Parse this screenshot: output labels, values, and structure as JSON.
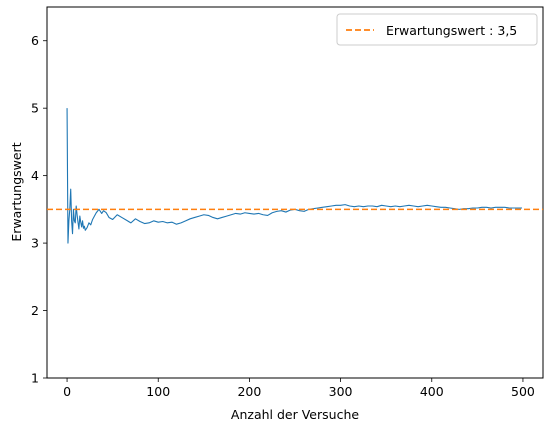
{
  "chart_data": {
    "type": "line",
    "title": "",
    "xlabel": "Anzahl der Versuche",
    "ylabel": "Erwartungswert",
    "xlim": [
      -22,
      522
    ],
    "ylim": [
      1,
      6.5
    ],
    "xticks": [
      0,
      100,
      200,
      300,
      400,
      500
    ],
    "yticks": [
      1,
      2,
      3,
      4,
      5,
      6
    ],
    "grid": false,
    "legend_position": "top-right",
    "series": [
      {
        "name": "",
        "color": "#1f77b4",
        "style": "solid",
        "x": [
          0,
          1,
          2,
          3,
          4,
          5,
          6,
          7,
          8,
          9,
          10,
          11,
          12,
          13,
          14,
          15,
          16,
          17,
          18,
          19,
          20,
          22,
          24,
          26,
          28,
          30,
          32,
          35,
          38,
          40,
          43,
          46,
          50,
          55,
          60,
          65,
          70,
          75,
          80,
          85,
          90,
          95,
          100,
          105,
          110,
          115,
          120,
          125,
          130,
          135,
          140,
          145,
          150,
          155,
          160,
          165,
          170,
          175,
          180,
          185,
          190,
          195,
          200,
          205,
          210,
          215,
          220,
          225,
          230,
          235,
          240,
          245,
          250,
          255,
          260,
          265,
          270,
          275,
          280,
          285,
          290,
          295,
          300,
          305,
          310,
          315,
          320,
          325,
          330,
          335,
          340,
          345,
          350,
          355,
          360,
          365,
          370,
          375,
          380,
          385,
          390,
          395,
          400,
          405,
          410,
          415,
          420,
          425,
          430,
          435,
          440,
          445,
          450,
          455,
          460,
          465,
          470,
          475,
          480,
          485,
          490,
          495,
          499
        ],
        "values": [
          5.0,
          3.0,
          3.33,
          3.5,
          3.8,
          3.33,
          3.14,
          3.5,
          3.33,
          3.3,
          3.55,
          3.42,
          3.31,
          3.21,
          3.4,
          3.31,
          3.24,
          3.33,
          3.22,
          3.25,
          3.19,
          3.23,
          3.3,
          3.27,
          3.35,
          3.4,
          3.45,
          3.5,
          3.44,
          3.48,
          3.45,
          3.38,
          3.35,
          3.42,
          3.38,
          3.34,
          3.3,
          3.36,
          3.32,
          3.29,
          3.3,
          3.33,
          3.31,
          3.32,
          3.3,
          3.31,
          3.28,
          3.3,
          3.33,
          3.36,
          3.38,
          3.4,
          3.42,
          3.41,
          3.38,
          3.36,
          3.38,
          3.4,
          3.42,
          3.44,
          3.43,
          3.45,
          3.44,
          3.43,
          3.44,
          3.42,
          3.41,
          3.45,
          3.47,
          3.48,
          3.46,
          3.49,
          3.5,
          3.48,
          3.47,
          3.5,
          3.51,
          3.52,
          3.53,
          3.54,
          3.55,
          3.56,
          3.56,
          3.57,
          3.55,
          3.54,
          3.55,
          3.54,
          3.55,
          3.55,
          3.54,
          3.56,
          3.55,
          3.54,
          3.55,
          3.54,
          3.55,
          3.56,
          3.55,
          3.54,
          3.55,
          3.56,
          3.55,
          3.54,
          3.53,
          3.53,
          3.52,
          3.51,
          3.5,
          3.51,
          3.51,
          3.52,
          3.52,
          3.53,
          3.53,
          3.52,
          3.53,
          3.53,
          3.53,
          3.52,
          3.52,
          3.52,
          3.52
        ]
      }
    ],
    "reference_line": {
      "name": "Erwartungswert : 3,5",
      "value": 3.5,
      "color": "#ff7f0e",
      "style": "dashed"
    }
  }
}
